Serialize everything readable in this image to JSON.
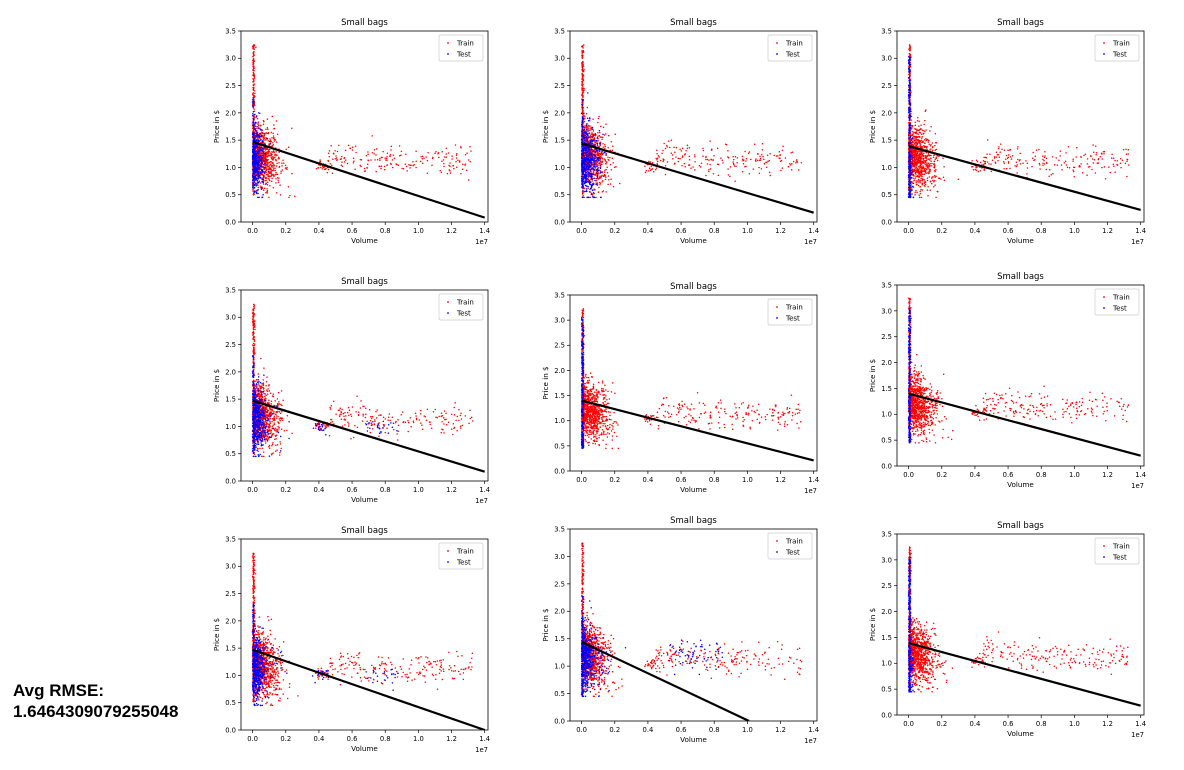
{
  "avg_rmse": {
    "label": "Avg RMSE:",
    "value": "1.6464309079255048"
  },
  "colors": {
    "train": "#ff0000",
    "test": "#0000ff",
    "fit": "#000000"
  },
  "chart_data": [
    {
      "type": "scatter",
      "title": "Small bags",
      "xlabel": "Volume",
      "ylabel": "Price in $",
      "x_offset_label": "1e7",
      "xlim": [
        -0.07,
        1.42
      ],
      "ylim": [
        0.0,
        3.5
      ],
      "xticks": [
        "0.0",
        "0.2",
        "0.4",
        "0.6",
        "0.8",
        "1.0",
        "1.2",
        "1.4"
      ],
      "yticks": [
        "0.0",
        "0.5",
        "1.0",
        "1.5",
        "2.0",
        "2.5",
        "3.0",
        "3.5"
      ],
      "legend": {
        "position": "top-right",
        "entries": [
          "Train",
          "Test"
        ]
      },
      "series": [
        {
          "name": "Train",
          "color": "#ff0000"
        },
        {
          "name": "Test",
          "color": "#0000ff"
        }
      ],
      "test_pattern": "low-volume",
      "fit_line": {
        "x": [
          0.0,
          1.4
        ],
        "y": [
          1.47,
          0.08
        ]
      }
    },
    {
      "type": "scatter",
      "title": "Small bags",
      "xlabel": "Volume",
      "ylabel": "Price in $",
      "x_offset_label": "1e7",
      "xlim": [
        -0.07,
        1.42
      ],
      "ylim": [
        0.0,
        3.5
      ],
      "xticks": [
        "0.0",
        "0.2",
        "0.4",
        "0.6",
        "0.8",
        "1.0",
        "1.2",
        "1.4"
      ],
      "yticks": [
        "0.0",
        "0.5",
        "1.0",
        "1.5",
        "2.0",
        "2.5",
        "3.0",
        "3.5"
      ],
      "legend": {
        "position": "top-right",
        "entries": [
          "Train",
          "Test"
        ]
      },
      "series": [
        {
          "name": "Train",
          "color": "#ff0000"
        },
        {
          "name": "Test",
          "color": "#0000ff"
        }
      ],
      "test_pattern": "low-volume-wide",
      "fit_line": {
        "x": [
          0.0,
          1.4
        ],
        "y": [
          1.44,
          0.17
        ]
      }
    },
    {
      "type": "scatter",
      "title": "Small bags",
      "xlabel": "Volume",
      "ylabel": "Price in $",
      "x_offset_label": "1e7",
      "xlim": [
        -0.07,
        1.42
      ],
      "ylim": [
        0.0,
        3.5
      ],
      "xticks": [
        "0.0",
        "0.2",
        "0.4",
        "0.6",
        "0.8",
        "1.0",
        "1.2",
        "1.4"
      ],
      "yticks": [
        "0.0",
        "0.5",
        "1.0",
        "1.5",
        "2.0",
        "2.5",
        "3.0",
        "3.5"
      ],
      "legend": {
        "position": "top-right",
        "entries": [
          "Train",
          "Test"
        ]
      },
      "series": [
        {
          "name": "Train",
          "color": "#ff0000"
        },
        {
          "name": "Test",
          "color": "#0000ff"
        }
      ],
      "test_pattern": "near-zero-wide",
      "fit_line": {
        "x": [
          0.0,
          1.4
        ],
        "y": [
          1.39,
          0.22
        ]
      }
    },
    {
      "type": "scatter",
      "title": "Small bags",
      "xlabel": "Volume",
      "ylabel": "Price in $",
      "x_offset_label": "1e7",
      "xlim": [
        -0.07,
        1.42
      ],
      "ylim": [
        0.0,
        3.5
      ],
      "xticks": [
        "0.0",
        "0.2",
        "0.4",
        "0.6",
        "0.8",
        "1.0",
        "1.2",
        "1.4"
      ],
      "yticks": [
        "0.0",
        "0.5",
        "1.0",
        "1.5",
        "2.0",
        "2.5",
        "3.0",
        "3.5"
      ],
      "legend": {
        "position": "top-right",
        "entries": [
          "Train",
          "Test"
        ]
      },
      "series": [
        {
          "name": "Train",
          "color": "#ff0000"
        },
        {
          "name": "Test",
          "color": "#0000ff"
        }
      ],
      "test_pattern": "low-volume-plus-mid",
      "fit_line": {
        "x": [
          0.0,
          1.4
        ],
        "y": [
          1.47,
          0.17
        ]
      }
    },
    {
      "type": "scatter",
      "title": "Small bags",
      "xlabel": "Volume",
      "ylabel": "Price in $",
      "x_offset_label": "1e7",
      "xlim": [
        -0.07,
        1.42
      ],
      "ylim": [
        0.0,
        3.5
      ],
      "xticks": [
        "0.0",
        "0.2",
        "0.4",
        "0.6",
        "0.8",
        "1.0",
        "1.2",
        "1.4"
      ],
      "yticks": [
        "0.0",
        "0.5",
        "1.0",
        "1.5",
        "2.0",
        "2.5",
        "3.0",
        "3.5"
      ],
      "legend": {
        "position": "top-right",
        "entries": [
          "Train",
          "Test"
        ]
      },
      "series": [
        {
          "name": "Train",
          "color": "#ff0000"
        },
        {
          "name": "Test",
          "color": "#0000ff"
        }
      ],
      "test_pattern": "near-zero",
      "fit_line": {
        "x": [
          0.0,
          1.4
        ],
        "y": [
          1.4,
          0.21
        ]
      }
    },
    {
      "type": "scatter",
      "title": "Small bags",
      "xlabel": "Volume",
      "ylabel": "Price in $",
      "x_offset_label": "1e7",
      "xlim": [
        -0.07,
        1.42
      ],
      "ylim": [
        0.0,
        3.5
      ],
      "xticks": [
        "0.0",
        "0.2",
        "0.4",
        "0.6",
        "0.8",
        "1.0",
        "1.2",
        "1.4"
      ],
      "yticks": [
        "0.0",
        "0.5",
        "1.0",
        "1.5",
        "2.0",
        "2.5",
        "3.0",
        "3.5"
      ],
      "legend": {
        "position": "top-right",
        "entries": [
          "Train",
          "Test"
        ]
      },
      "series": [
        {
          "name": "Train",
          "color": "#ff0000"
        },
        {
          "name": "Test",
          "color": "#0000ff"
        }
      ],
      "test_pattern": "near-zero",
      "fit_line": {
        "x": [
          0.0,
          1.4
        ],
        "y": [
          1.4,
          0.2
        ]
      }
    },
    {
      "type": "scatter",
      "title": "Small bags",
      "xlabel": "Volume",
      "ylabel": "Price in $",
      "x_offset_label": "1e7",
      "xlim": [
        -0.07,
        1.42
      ],
      "ylim": [
        0.0,
        3.5
      ],
      "xticks": [
        "0.0",
        "0.2",
        "0.4",
        "0.6",
        "0.8",
        "1.0",
        "1.2",
        "1.4"
      ],
      "yticks": [
        "0.0",
        "0.5",
        "1.0",
        "1.5",
        "2.0",
        "2.5",
        "3.0",
        "3.5"
      ],
      "legend": {
        "position": "top-right",
        "entries": [
          "Train",
          "Test"
        ]
      },
      "series": [
        {
          "name": "Train",
          "color": "#ff0000"
        },
        {
          "name": "Test",
          "color": "#0000ff"
        }
      ],
      "test_pattern": "low-volume-plus-mid",
      "fit_line": {
        "x": [
          0.0,
          1.4
        ],
        "y": [
          1.47,
          0.0
        ]
      }
    },
    {
      "type": "scatter",
      "title": "Small bags",
      "xlabel": "Volume",
      "ylabel": "Price in $",
      "x_offset_label": "1e7",
      "xlim": [
        -0.07,
        1.42
      ],
      "ylim": [
        0.0,
        3.5
      ],
      "xticks": [
        "0.0",
        "0.2",
        "0.4",
        "0.6",
        "0.8",
        "1.0",
        "1.2",
        "1.4"
      ],
      "yticks": [
        "0.0",
        "0.5",
        "1.0",
        "1.5",
        "2.0",
        "2.5",
        "3.0",
        "3.5"
      ],
      "legend": {
        "position": "top-right",
        "entries": [
          "Train",
          "Test"
        ]
      },
      "series": [
        {
          "name": "Train",
          "color": "#ff0000"
        },
        {
          "name": "Test",
          "color": "#0000ff"
        }
      ],
      "test_pattern": "low-volume-plus-high",
      "fit_line": {
        "x": [
          0.0,
          1.01
        ],
        "y": [
          1.44,
          0.0
        ]
      }
    },
    {
      "type": "scatter",
      "title": "Small bags",
      "xlabel": "Volume",
      "ylabel": "Price in $",
      "x_offset_label": "1e7",
      "xlim": [
        -0.07,
        1.42
      ],
      "ylim": [
        0.0,
        3.5
      ],
      "xticks": [
        "0.0",
        "0.2",
        "0.4",
        "0.6",
        "0.8",
        "1.0",
        "1.2",
        "1.4"
      ],
      "yticks": [
        "0.0",
        "0.5",
        "1.0",
        "1.5",
        "2.0",
        "2.5",
        "3.0",
        "3.5"
      ],
      "legend": {
        "position": "top-right",
        "entries": [
          "Train",
          "Test"
        ]
      },
      "series": [
        {
          "name": "Train",
          "color": "#ff0000"
        },
        {
          "name": "Test",
          "color": "#0000ff"
        }
      ],
      "test_pattern": "near-zero-wide",
      "fit_line": {
        "x": [
          0.0,
          1.4
        ],
        "y": [
          1.39,
          0.18
        ]
      }
    }
  ]
}
